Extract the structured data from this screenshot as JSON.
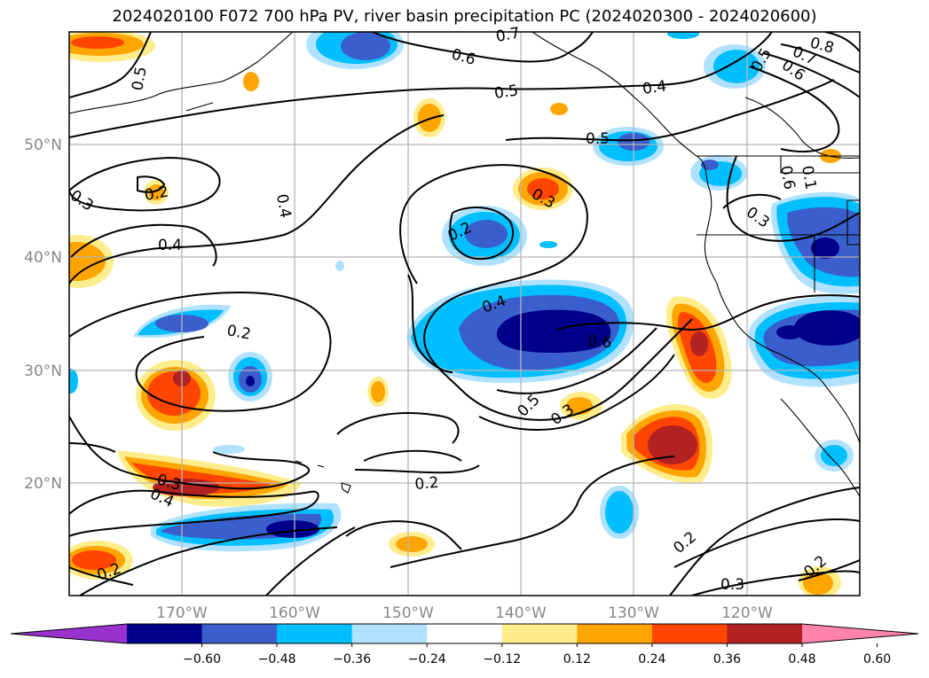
{
  "title": "2024020100 F072 700 hPa PV, river basin precipitation PC (2024020300 - 2024020600)",
  "lat_labels": [
    "50°N",
    "40°N",
    "30°N",
    "20°N"
  ],
  "lon_labels": [
    "170°W",
    "160°W",
    "150°W",
    "140°W",
    "130°W",
    "120°W"
  ],
  "colorbar": {
    "colors": [
      "#9932cc",
      "#00008b",
      "#3a5fcd",
      "#00bfff",
      "#b0e2ff",
      "#ffffff",
      "#ffec8b",
      "#ffa500",
      "#ff4500",
      "#b22222",
      "#ff82ab"
    ],
    "tick_labels": [
      "−0.60",
      "−0.48",
      "−0.36",
      "−0.24",
      "−0.12",
      "0.12",
      "0.24",
      "0.36",
      "0.48",
      "0.60"
    ]
  },
  "contour_labels": {
    "c07_top": "0.7",
    "c06_top": "0.6",
    "c05_topleft": "0.5",
    "c05_mid": "0.5",
    "c04_ne": "0.4",
    "c05_coast": "0.5",
    "c08_ne": "0.8",
    "c07_ne": "0.7",
    "c06_ne": "0.6",
    "c05_ne": "0.5",
    "c03_left": "0.3",
    "c02_small": "0.2",
    "c04_cen": "0.4",
    "c04_left": "0.4",
    "c02_low": "0.2",
    "c02_high": "0.2",
    "c03_high": "0.3",
    "c04_jet": "0.4",
    "c06_jet": "0.6",
    "c05_sw": "0.5",
    "c03_sw": "0.3",
    "c06_coast": "0.6",
    "c01_coast": "0.1",
    "c03_coast": "0.3",
    "c03_sub": "0.3",
    "c04_sub": "0.4",
    "c02_sub": "0.2",
    "c02_trough": "0.2",
    "c02_se": "0.2",
    "c03_se": "0.3",
    "c02_corner": "0.2"
  }
}
